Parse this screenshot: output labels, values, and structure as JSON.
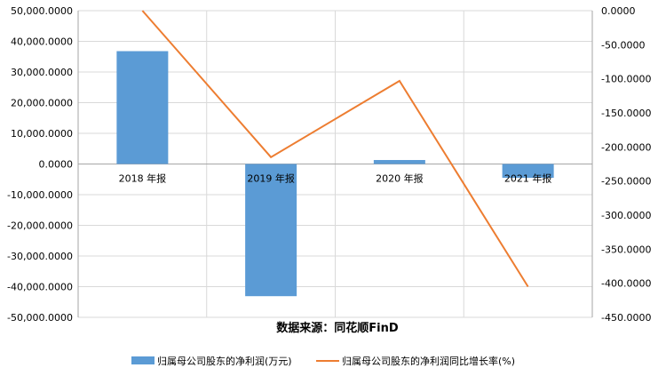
{
  "chart_data": {
    "type": "bar",
    "categories": [
      "2018 年报",
      "2019 年报",
      "2020 年报",
      "2021 年报"
    ],
    "series": [
      {
        "name": "归属母公司股东的净利润(万元)",
        "type": "bar",
        "axis": "left",
        "color": "#5b9bd5",
        "values": [
          36800,
          -43100,
          1300,
          -4500
        ]
      },
      {
        "name": "归属母公司股东的净利润同比增长率(%)",
        "type": "line",
        "axis": "right",
        "color": "#ed7d31",
        "values": [
          0,
          -215,
          -103,
          -405
        ]
      }
    ],
    "y_left": {
      "ylim": [
        -50000,
        50000
      ],
      "ticks": [
        "50,000.0000",
        "40,000.0000",
        "30,000.0000",
        "20,000.0000",
        "10,000.0000",
        "0.0000",
        "-10,000.0000",
        "-20,000.0000",
        "-30,000.0000",
        "-40,000.0000",
        "-50,000.0000"
      ]
    },
    "y_right": {
      "ylim": [
        -450,
        0
      ],
      "ticks": [
        "0.0000",
        "-50.0000",
        "-100.0000",
        "-150.0000",
        "-200.0000",
        "-250.0000",
        "-300.0000",
        "-350.0000",
        "-400.0000",
        "-450.0000"
      ]
    },
    "grid": true,
    "legend": "bottom",
    "source_note": "数据来源：同花顺FinD"
  }
}
